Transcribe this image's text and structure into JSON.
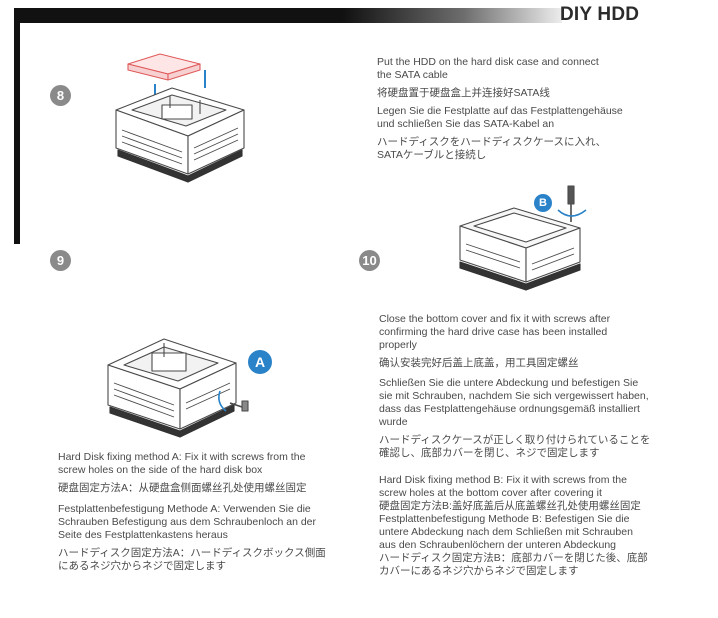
{
  "header": {
    "title": "DIY HDD"
  },
  "steps": {
    "s8": {
      "number": "8",
      "lines": [
        "Put the HDD on the hard disk case and connect",
        "the SATA cable",
        "将硬盘置于硬盘盒上并连接好SATA线",
        "Legen Sie die Festplatte auf das Festplattengehäuse",
        "und schließen Sie das SATA-Kabel an",
        "ハードディスクをハードディスクケースに入れ、",
        "SATAケーブルと接続し"
      ]
    },
    "s9": {
      "number": "9",
      "badge": "A",
      "lines": [
        "Hard Disk fixing method A: Fix it with screws from the",
        "screw holes on the side of the hard disk box",
        "硬盘固定方法A：从硬盘盒侧面螺丝孔处使用螺丝固定",
        "Festplattenbefestigung Methode A: Verwenden Sie die",
        "Schrauben Befestigung aus dem Schraubenloch an der",
        "Seite des Festplattenkastens heraus",
        "ハードディスク固定方法A：ハードディスクボックス側面",
        "にあるネジ穴からネジで固定します"
      ]
    },
    "s10": {
      "number": "10",
      "badge": "B",
      "lines": [
        "Close the bottom cover and fix it with screws after",
        "confirming the hard drive case has been installed",
        "properly",
        "确认安装完好后盖上底盖，用工具固定螺丝",
        "Schließen Sie die untere Abdeckung und befestigen Sie",
        "sie mit Schrauben, nachdem Sie sich vergewissert haben,",
        "dass das Festplattengehäuse ordnungsgemäß installiert",
        "wurde",
        "ハードディスクケースが正しく取り付けられていることを",
        "確認し、底部カバーを閉じ、ネジで固定します",
        "Hard Disk fixing method B: Fix it with screws from the",
        "screw holes at the bottom cover after covering it",
        "硬盘固定方法B:盖好底盖后从底盖螺丝孔处使用螺丝固定",
        "Festplattenbefestigung Methode B: Befestigen Sie die",
        "untere Abdeckung nach dem Schließen mit Schrauben",
        "aus den Schraubenlöchern der unteren Abdeckung",
        "ハードディスク固定方法B：底部カバーを閉じた後、底部",
        "カバーにあるネジ穴からネジで固定します"
      ]
    }
  },
  "colors": {
    "accent_red": "#e05a5a",
    "badge_blue": "#2a82c8",
    "number_gray": "#8a8a8a"
  }
}
